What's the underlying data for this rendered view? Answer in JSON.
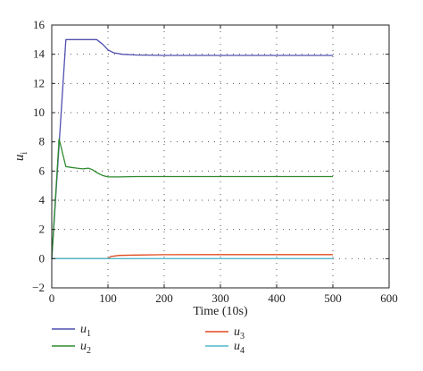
{
  "chart_data": {
    "type": "line",
    "xlabel": "Time (10s)",
    "ylabel_base": "u",
    "ylabel_sub": "i",
    "xlim": [
      0,
      600
    ],
    "ylim": [
      -2,
      16
    ],
    "xticks": [
      "0",
      "100",
      "200",
      "300",
      "400",
      "500",
      "600"
    ],
    "yticks": [
      "−2",
      "0",
      "2",
      "4",
      "6",
      "8",
      "10",
      "12",
      "14",
      "16"
    ],
    "grid": true,
    "legend_position": "bottom",
    "series": [
      {
        "name": "u1",
        "label_base": "u",
        "label_sub": "1",
        "color": "#4f4fb0",
        "x": [
          0,
          25,
          70,
          80,
          90,
          100,
          110,
          125,
          150,
          200,
          300,
          400,
          500
        ],
        "y": [
          0,
          15,
          15,
          15,
          14.7,
          14.3,
          14.1,
          14.0,
          13.95,
          13.92,
          13.92,
          13.92,
          13.92
        ]
      },
      {
        "name": "u2",
        "label_base": "u",
        "label_sub": "2",
        "color": "#2e8b2e",
        "x": [
          0,
          13,
          25,
          35,
          45,
          55,
          65,
          72,
          80,
          90,
          100,
          120,
          150,
          200,
          300,
          400,
          500
        ],
        "y": [
          0,
          8.2,
          6.3,
          6.25,
          6.2,
          6.15,
          6.2,
          6.1,
          5.9,
          5.7,
          5.6,
          5.6,
          5.62,
          5.62,
          5.62,
          5.62,
          5.62
        ]
      },
      {
        "name": "u3",
        "label_base": "u",
        "label_sub": "3",
        "color": "#e04a1e",
        "x": [
          0,
          100,
          105,
          120,
          150,
          200,
          300,
          400,
          500
        ],
        "y": [
          0,
          0,
          0.15,
          0.22,
          0.25,
          0.27,
          0.28,
          0.28,
          0.28
        ]
      },
      {
        "name": "u4",
        "label_base": "u",
        "label_sub": "4",
        "color": "#4fb8c8",
        "x": [
          0,
          100,
          200,
          300,
          400,
          500
        ],
        "y": [
          0,
          0,
          0,
          0,
          0,
          0
        ]
      }
    ]
  }
}
